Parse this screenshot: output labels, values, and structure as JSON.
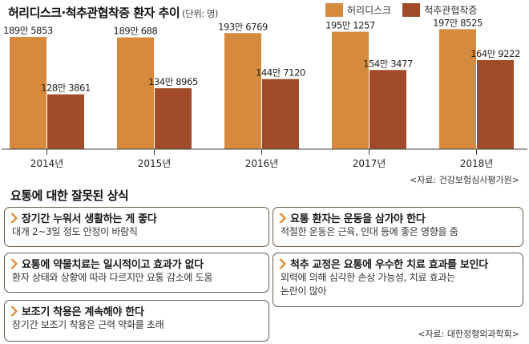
{
  "title": "허리디스크·척추관협착증 환자 추이",
  "unit": "(단위: 명)",
  "colors": {
    "disc": "#D68A3D",
    "stenosis": "#A24B2A",
    "border": "#6a5a49",
    "chevron": "#E08A2E",
    "axis": "#444444"
  },
  "chart_data": {
    "type": "bar",
    "title": "허리디스크·척추관협착증 환자 추이",
    "ylabel": "(단위: 명)",
    "categories": [
      "2014년",
      "2015년",
      "2016년",
      "2017년",
      "2018년"
    ],
    "series": [
      {
        "name": "허리디스크",
        "values": [
          1895853,
          1890688,
          1936769,
          1951257,
          1978525
        ],
        "labels": [
          "189만 5853",
          "189만 688",
          "193만 6769",
          "195만 1257",
          "197만 8525"
        ]
      },
      {
        "name": "척추관협착증",
        "values": [
          1283861,
          1348965,
          1447120,
          1543477,
          1649222
        ],
        "labels": [
          "128만 3861",
          "134만 8965",
          "144만 7120",
          "154만 3477",
          "164만 9222"
        ]
      }
    ],
    "legend_position": "top-right",
    "grid": false
  },
  "source1": "<자료: 건강보험심사평가원>",
  "section_title": "요통에 대한 잘못된 상식",
  "cards": [
    {
      "head": "장기간 누워서 생활하는 게 좋다",
      "lines": [
        "대개 2~3일 정도 안정이 바람직"
      ]
    },
    {
      "head": "요통 환자는 운동을 삼가야 한다",
      "lines": [
        "적절한 운동은 근육, 인대 등에 좋은 영향을 줌"
      ]
    },
    {
      "head": "요통에 약물치료는 일시적이고 효과가 없다",
      "lines": [
        "환자 상태와 상황에 따라 다르지만 요통 감소에 도움"
      ]
    },
    {
      "head": "척추 교정은 요통에 우수한 치료 효과를 보인다",
      "lines": [
        "외력에 의해 심각한 손상 가능성, 치료 효과는",
        "논란이 많아"
      ]
    },
    {
      "head": "보조기 착용은 계속해야 한다",
      "lines": [
        "장기간 보조기 착용은 근력 약화를 초래"
      ]
    }
  ],
  "source2": "<자료: 대한정형외과학회>"
}
